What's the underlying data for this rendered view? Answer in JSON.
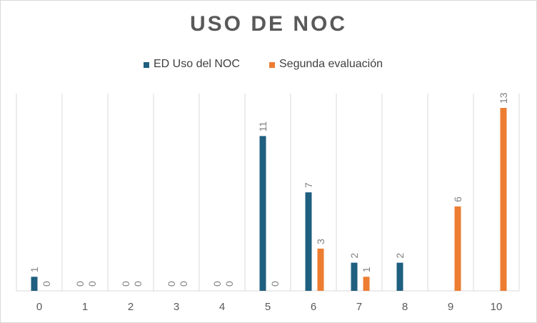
{
  "chart_data": {
    "type": "bar",
    "title": "USO DE NOC",
    "xlabel": "",
    "ylabel": "",
    "categories": [
      "0",
      "1",
      "2",
      "3",
      "4",
      "5",
      "6",
      "7",
      "8",
      "9",
      "10"
    ],
    "series": [
      {
        "name": "ED Uso del NOC",
        "color": "#1f5f7f",
        "values": [
          1,
          0,
          0,
          0,
          0,
          11,
          7,
          2,
          2,
          null,
          null
        ],
        "labels": [
          "1",
          "0",
          "0",
          "0",
          "0",
          "11",
          "7",
          "2",
          "2",
          "",
          ""
        ]
      },
      {
        "name": "Segunda evaluación",
        "color": "#ed7d31",
        "values": [
          0,
          0,
          0,
          0,
          0,
          0,
          3,
          1,
          null,
          6,
          13
        ],
        "labels": [
          "0",
          "0",
          "0",
          "0",
          "0",
          "0",
          "3",
          "1",
          "",
          "6",
          "13"
        ]
      }
    ],
    "ylim": [
      0,
      13
    ],
    "grid": "vertical",
    "legend": "top-center",
    "data_label_color": "#7f7f7f",
    "gridline_color": "#d9d9d9"
  }
}
